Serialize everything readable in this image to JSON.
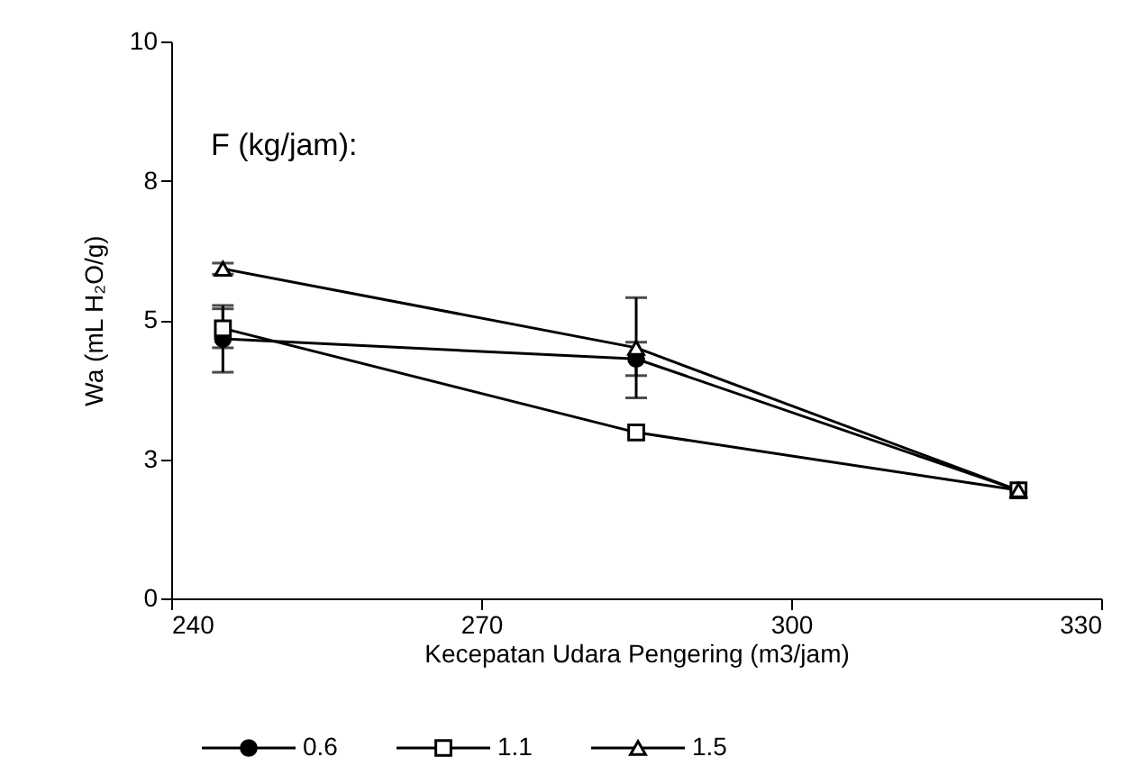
{
  "chart_data": {
    "type": "line",
    "xlabel": "Kecepatan Udara Pengering (m3/jam)",
    "ylabel": "Wa (mL H₂O/g)",
    "legend_title": "F (kg/jam):",
    "x": [
      245,
      285,
      322
    ],
    "xlim": [
      240,
      330
    ],
    "xticks": [
      240,
      270,
      300,
      330
    ],
    "ylim": [
      0,
      10
    ],
    "yticks": [
      0,
      {
        "value": 2.5,
        "label": "3"
      },
      5,
      {
        "value": 7.5,
        "label": "8"
      },
      10
    ],
    "grid": false,
    "legend": "bottom",
    "series": [
      {
        "name": "0.6",
        "color": "#000000",
        "marker": "circle",
        "values": [
          4.66,
          4.3,
          1.94
        ],
        "errors": [
          0.6,
          0.3,
          null
        ]
      },
      {
        "name": "1.1",
        "color": "#000000",
        "marker": "square",
        "values": [
          4.85,
          2.98,
          1.94
        ],
        "errors": [
          0.35,
          null,
          null
        ]
      },
      {
        "name": "1.5",
        "color": "#000000",
        "marker": "triangle",
        "values": [
          5.92,
          4.5,
          1.94
        ],
        "errors": [
          0.1,
          0.9,
          null
        ]
      }
    ]
  }
}
